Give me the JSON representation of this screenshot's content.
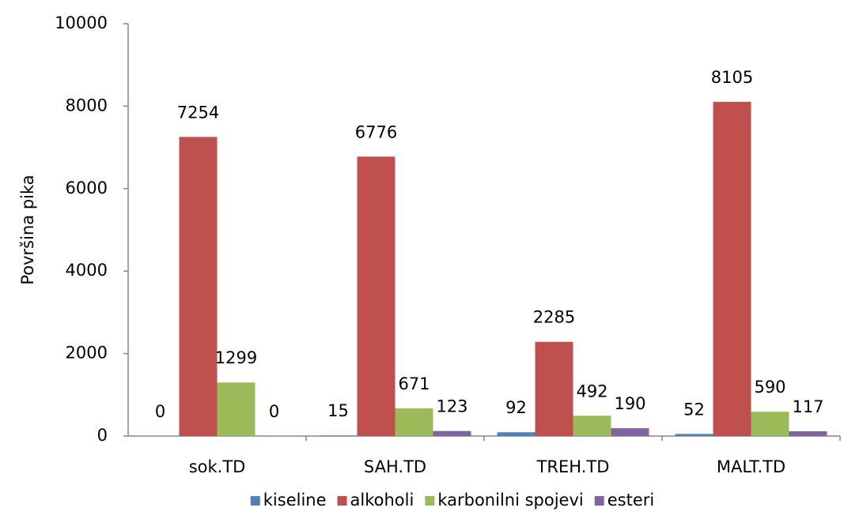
{
  "chart_data": {
    "type": "bar",
    "y_label": "Površina pika",
    "categories": [
      "sok.TD",
      "SAH.TD",
      "TREH.TD",
      "MALT.TD"
    ],
    "series": [
      {
        "name": "kiseline",
        "color": "#4f81bd",
        "values": [
          0,
          15,
          92,
          52
        ]
      },
      {
        "name": "alkoholi",
        "color": "#c0504d",
        "values": [
          7254,
          6776,
          2285,
          8105
        ]
      },
      {
        "name": "karbonilni spojevi",
        "color": "#9bbb59",
        "values": [
          1299,
          671,
          492,
          590
        ]
      },
      {
        "name": "esteri",
        "color": "#8064a2",
        "values": [
          0,
          123,
          190,
          117
        ]
      }
    ],
    "ylim": [
      0,
      10000
    ],
    "yticks": [
      0,
      2000,
      4000,
      6000,
      8000,
      10000
    ],
    "grid": false,
    "legend": "bottom"
  }
}
